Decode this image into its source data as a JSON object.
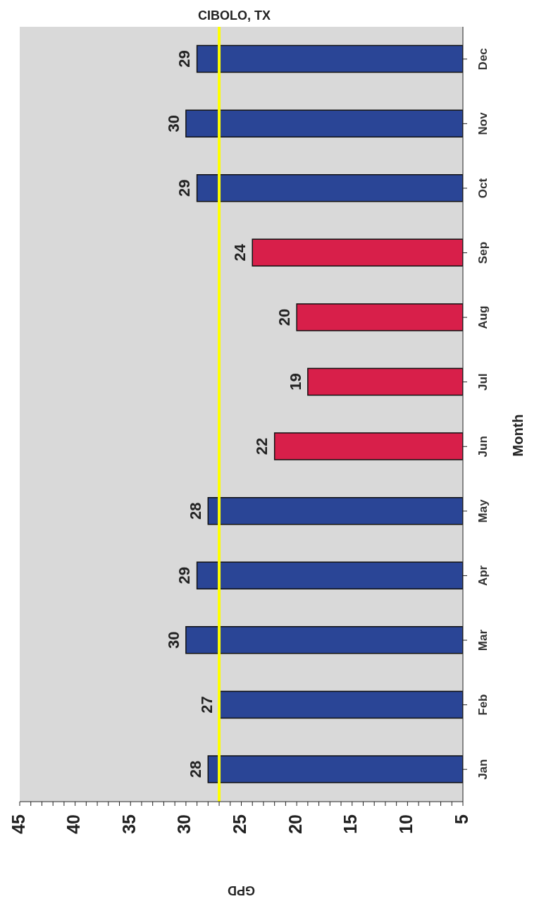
{
  "chart_data": {
    "type": "bar",
    "orientation": "horizontal",
    "title": "CIBOLO, TX",
    "xlabel": "GPD",
    "ylabel": "Month",
    "categories": [
      "Dec",
      "Nov",
      "Oct",
      "Sep",
      "Aug",
      "Jul",
      "Jun",
      "May",
      "Apr",
      "Mar",
      "Feb",
      "Jan"
    ],
    "values": [
      29,
      30,
      29,
      24,
      20,
      19,
      22,
      28,
      29,
      30,
      27,
      28
    ],
    "colors": [
      "#2a4596",
      "#2a4596",
      "#2a4596",
      "#d81f4a",
      "#d81f4a",
      "#d81f4a",
      "#d81f4a",
      "#2a4596",
      "#2a4596",
      "#2a4596",
      "#2a4596",
      "#2a4596"
    ],
    "xlim": [
      45,
      5
    ],
    "xticks": [
      45,
      {
        "value": 44,
        "label": null
      },
      {
        "value": 43,
        "label": null
      },
      {
        "value": 42,
        "label": null
      },
      {
        "value": 41,
        "label": null
      },
      40,
      {
        "value": 39,
        "label": null
      },
      {
        "value": 38,
        "label": null
      },
      {
        "value": 37,
        "label": null
      },
      {
        "value": 36,
        "label": null
      },
      35,
      {
        "value": 34,
        "label": null
      },
      {
        "value": 33,
        "label": null
      },
      {
        "value": 32,
        "label": null
      },
      {
        "value": 31,
        "label": null
      },
      30,
      {
        "value": 29,
        "label": null
      },
      {
        "value": 28,
        "label": null
      },
      {
        "value": 27,
        "label": null
      },
      {
        "value": 26,
        "label": null
      },
      25,
      {
        "value": 24,
        "label": null
      },
      {
        "value": 23,
        "label": null
      },
      {
        "value": 22,
        "label": null
      },
      {
        "value": 21,
        "label": null
      },
      20,
      {
        "value": 19,
        "label": null
      },
      {
        "value": 18,
        "label": null
      },
      {
        "value": 17,
        "label": null
      },
      {
        "value": 16,
        "label": null
      },
      15,
      {
        "value": 14,
        "label": null
      },
      {
        "value": 13,
        "label": null
      },
      {
        "value": 12,
        "label": null
      },
      {
        "value": 11,
        "label": null
      },
      10,
      {
        "value": 9,
        "label": null
      },
      {
        "value": 8,
        "label": null
      },
      {
        "value": 7,
        "label": null
      },
      {
        "value": 6,
        "label": null
      },
      5
    ],
    "ref_lines": [
      {
        "axis": "x",
        "value": 27,
        "color": "#ffff00"
      }
    ],
    "data_labels": true
  }
}
